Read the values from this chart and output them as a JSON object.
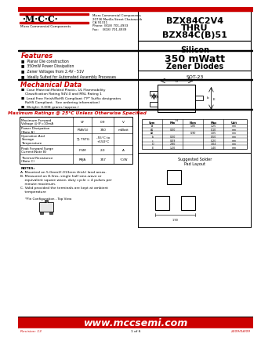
{
  "bg_color": "#ffffff",
  "header_red": "#cc0000",
  "title_part1": "BZX84C2V4",
  "title_part2": "THRU",
  "title_part3": "BZX84C(B)51",
  "subtitle1": "Silicon",
  "subtitle2": "350 mWatt",
  "subtitle3": "Zener Diodes",
  "company_lines": [
    "Micro Commercial Components",
    "20736 Marilla Street Chatsworth",
    "CA 91311",
    "Phone: (818) 701-4933",
    "Fax:    (818) 701-4939"
  ],
  "features_title": "Features",
  "features": [
    "Planar Die construction",
    "350mW Power Dissipation",
    "Zener Voltages from 2.4V - 51V",
    "Ideally Suited for Automated Assembly Processes"
  ],
  "mech_title": "Mechanical Data",
  "mech_items": [
    [
      "Case Material:Molded Plastic, UL Flammability",
      "Classification Rating 94V-0 and MSL Rating 1"
    ],
    [
      "Lead Free Finish/RoHS Compliant (\"P\" Suffix designates",
      "RoHS Compliant.  See ordering information)"
    ],
    [
      "Weight: 0.008 grams (approx.)"
    ]
  ],
  "table_title": "Maximum Ratings @ 25°C Unless Otherwise Specified",
  "table_col_headers": [
    "Maximum(Forward)\nVoltage @ IF=10mA",
    "VF",
    "0.9",
    "V"
  ],
  "table_rows": [
    [
      "Maximum Forward\nVoltage @ IF=10mA",
      "VF",
      "0.9",
      "V"
    ],
    [
      "Power Dissipation\n(Note A)",
      "P(AVG)",
      "350",
      "mWatt"
    ],
    [
      "Operation And\nStorage\nTemperature",
      "TJ, TSTG",
      "-55°C to\n+150°C",
      ""
    ],
    [
      "Peak Forward Surge\nCurrent(Note B)",
      "IFSM",
      "2.0",
      "A"
    ],
    [
      "Thermal Resistance\n(Note C)",
      "RθJA",
      "357",
      "°C/W"
    ]
  ],
  "note_lines": [
    "NOTES:",
    "A. Mounted on 5.0mm2(.013mm thick) land areas.",
    "B. Measured on 8.3ms, single half sine-wave or",
    "    equivalent square wave, duty cycle = 4 pulses per",
    "    minute maximum.",
    "C. Valid provided the terminals are kept at ambient",
    "    temperature"
  ],
  "footer_url": "www.mccsemi.com",
  "footer_rev": "Revision: 13",
  "footer_date": "2009/04/09",
  "footer_page": "1 of 6",
  "pin_config_label": "*Pin Configuration - Top View",
  "sot23_label": "SOT-23",
  "solder_label1": "Suggested Solder",
  "solder_label2": "Pad Layout"
}
